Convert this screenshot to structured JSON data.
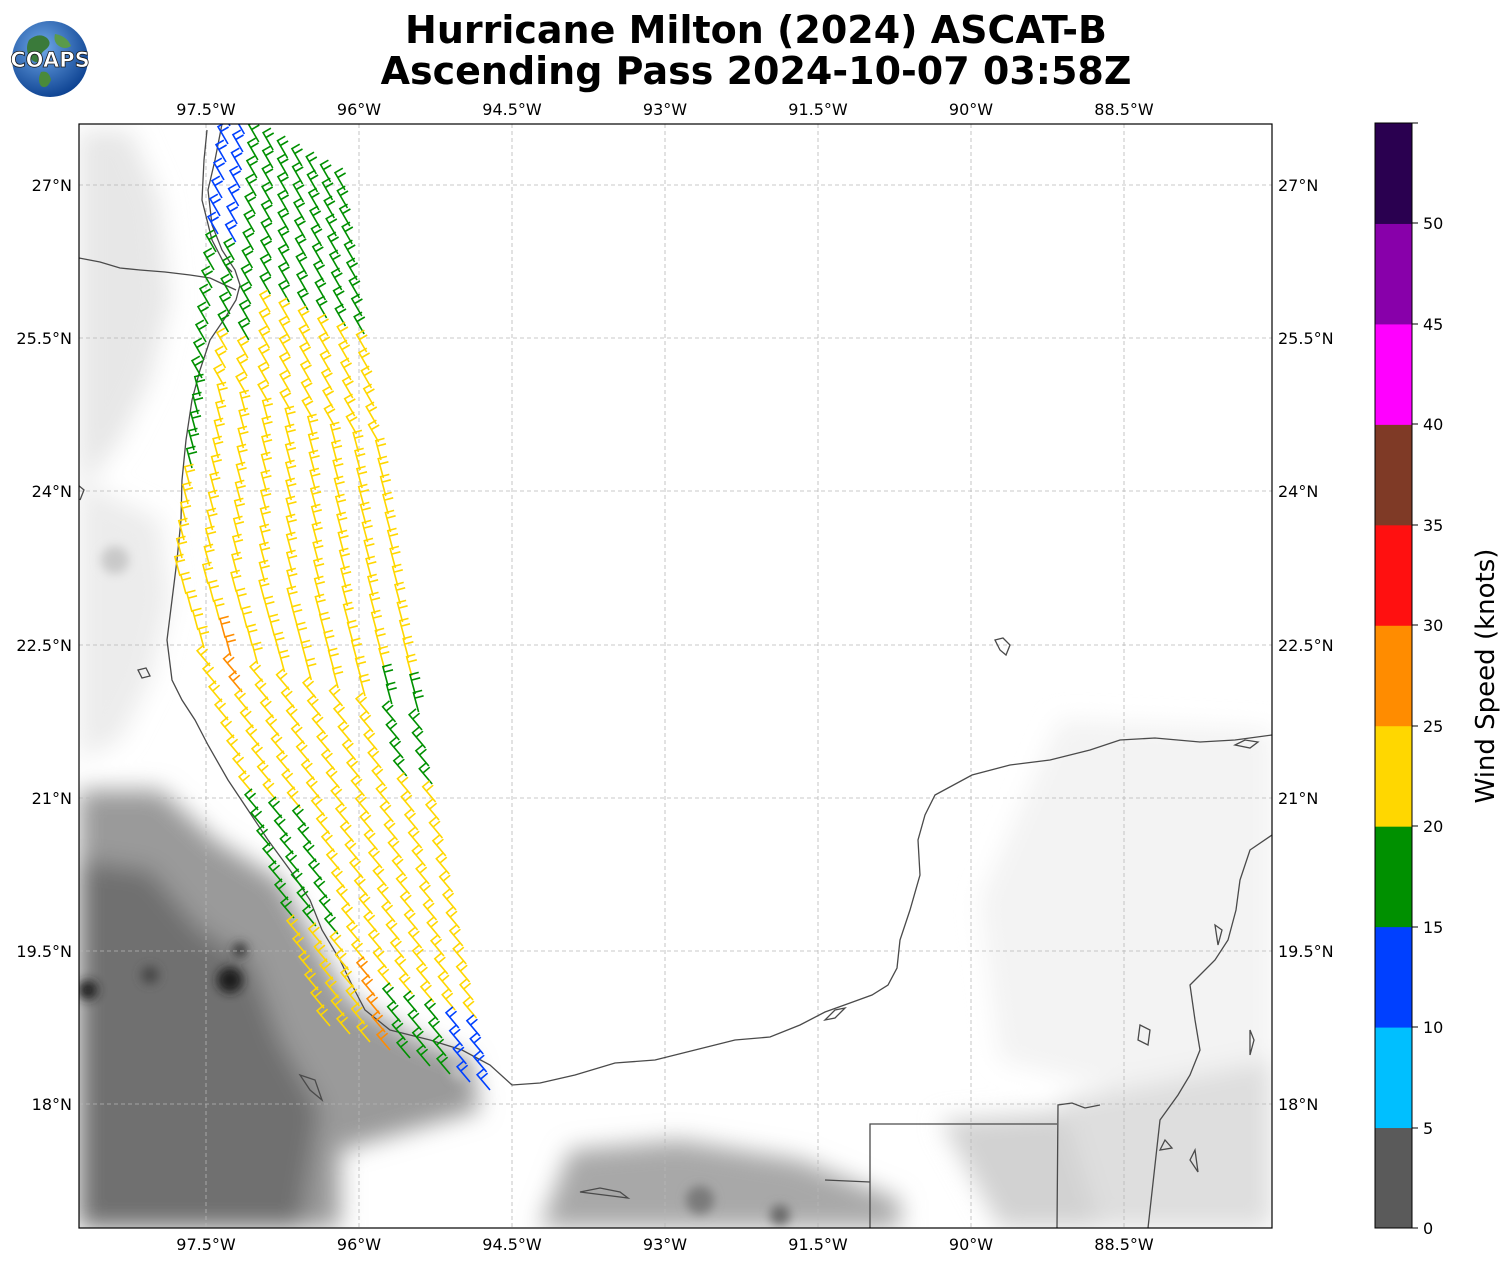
{
  "title": {
    "line1": "Hurricane Milton (2024) ASCAT-B",
    "line2": "Ascending Pass 2024-10-07 03:58Z"
  },
  "logo": {
    "text": "COAPS",
    "icon": "globe-logo"
  },
  "map": {
    "lon_ticks": [
      "97.5°W",
      "96°W",
      "94.5°W",
      "93°W",
      "91.5°W",
      "90°W",
      "88.5°W"
    ],
    "lat_ticks": [
      "27°N",
      "25.5°N",
      "24°N",
      "22.5°N",
      "21°N",
      "19.5°N",
      "18°N"
    ],
    "lon_range": [
      -98.75,
      -87.05
    ],
    "lat_range": [
      16.8,
      27.6
    ],
    "gridlines": true,
    "background": "grayscale terrain",
    "barb_colors": [
      "#5a5a5a",
      "#00bfff",
      "#0040ff",
      "#009000",
      "#ffd700",
      "#ff8c00",
      "#ff1010",
      "#7f3a26",
      "#ff00ff",
      "#8800aa",
      "#2a0050"
    ]
  },
  "colorbar": {
    "label": "Wind Speed (knots)",
    "ticks": [
      "0",
      "5",
      "10",
      "15",
      "20",
      "25",
      "30",
      "35",
      "40",
      "45",
      "50"
    ],
    "colors": [
      "#5a5a5a",
      "#00bfff",
      "#0040ff",
      "#009000",
      "#ffd700",
      "#ff8c00",
      "#ff1010",
      "#7f3a26",
      "#ff00ff",
      "#8800aa",
      "#2a0050"
    ]
  }
}
